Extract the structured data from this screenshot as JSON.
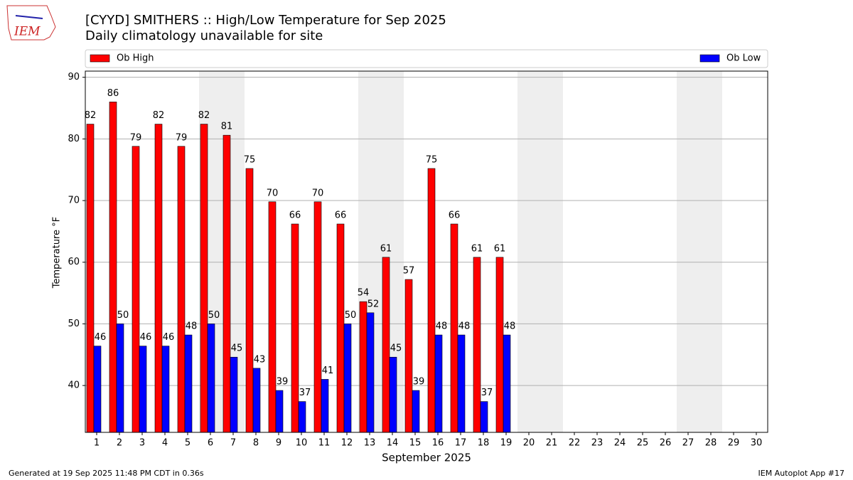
{
  "chart_data": {
    "type": "bar",
    "title": "[CYYD] SMITHERS :: High/Low Temperature for Sep 2025",
    "subtitle": "Daily climatology unavailable for site",
    "y_label": "Temperature °F",
    "x_label": "September 2025",
    "logo_text": "IEM",
    "footer_left": "Generated at 19 Sep 2025 11:48 PM CDT in 0.36s",
    "footer_right": "IEM Autoplot App #17",
    "categories": [
      "1",
      "2",
      "3",
      "4",
      "5",
      "6",
      "7",
      "8",
      "9",
      "10",
      "11",
      "12",
      "13",
      "14",
      "15",
      "16",
      "17",
      "18",
      "19",
      "20",
      "21",
      "22",
      "23",
      "24",
      "25",
      "26",
      "27",
      "28",
      "29",
      "30"
    ],
    "series": [
      {
        "name": "Ob High",
        "color": "#ff0000",
        "values": [
          82.4,
          86,
          78.8,
          82.4,
          78.8,
          82.4,
          80.6,
          75.2,
          69.8,
          66.2,
          69.8,
          66.2,
          53.6,
          60.8,
          57.2,
          75.2,
          66.2,
          60.8,
          60.8,
          null,
          null,
          null,
          null,
          null,
          null,
          null,
          null,
          null,
          null,
          null
        ],
        "value_labels": [
          "82",
          "86",
          "79",
          "82",
          "79",
          "82",
          "81",
          "75",
          "70",
          "66",
          "70",
          "66",
          "54",
          "61",
          "57",
          "75",
          "66",
          "61",
          "61",
          null,
          null,
          null,
          null,
          null,
          null,
          null,
          null,
          null,
          null,
          null
        ]
      },
      {
        "name": "Ob Low",
        "color": "#0000ff",
        "values": [
          46.4,
          50,
          46.4,
          46.4,
          48.2,
          50,
          44.6,
          42.8,
          39.2,
          37.4,
          41,
          50,
          51.8,
          44.6,
          39.2,
          48.2,
          48.2,
          37.4,
          48.2,
          null,
          null,
          null,
          null,
          null,
          null,
          null,
          null,
          null,
          null,
          null
        ],
        "value_labels": [
          "46",
          "50",
          "46",
          "46",
          "48",
          "50",
          "45",
          "43",
          "39",
          "37",
          "41",
          "50",
          "52",
          "45",
          "39",
          "48",
          "48",
          "37",
          "48",
          null,
          null,
          null,
          null,
          null,
          null,
          null,
          null,
          null,
          null,
          null
        ]
      }
    ],
    "shaded_categories": [
      "6",
      "7",
      "13",
      "14",
      "20",
      "21",
      "27",
      "28"
    ],
    "shade_color": "#eeeeee",
    "ylim": [
      32.4,
      91
    ],
    "yticks": [
      40,
      50,
      60,
      70,
      80,
      90
    ],
    "grid": true
  }
}
